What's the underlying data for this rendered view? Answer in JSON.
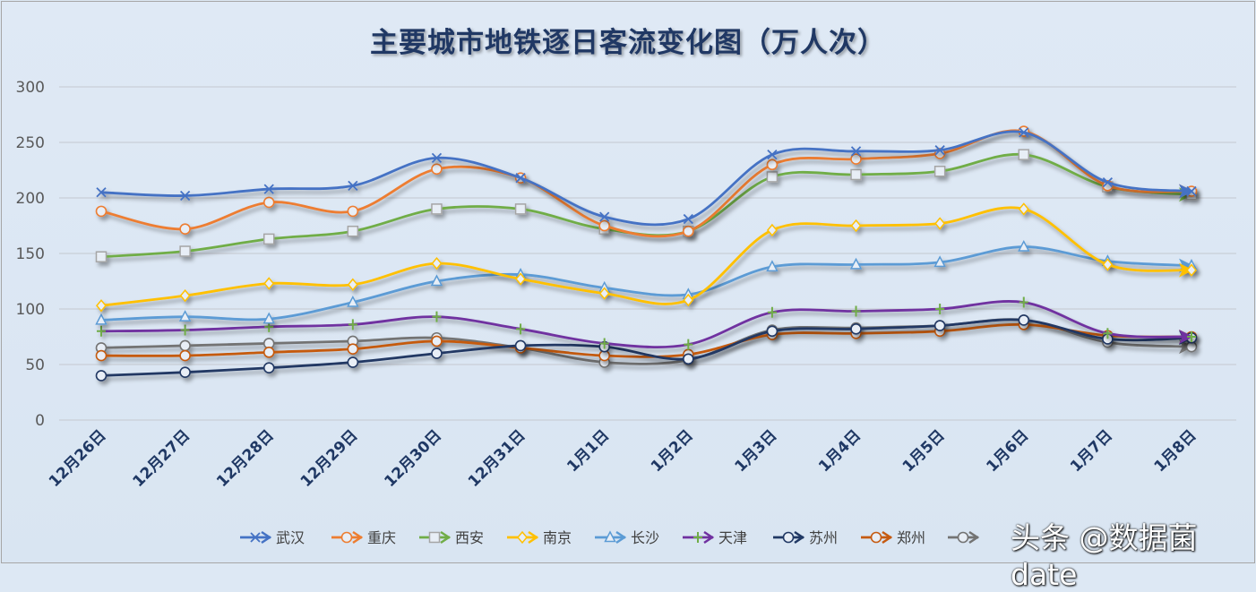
{
  "chart_data": {
    "type": "line",
    "title": "主要城市地铁逐日客流变化图（万人次）",
    "xlabel": "",
    "ylabel": "",
    "ylim": [
      0,
      300
    ],
    "yticks": [
      0,
      50,
      100,
      150,
      200,
      250,
      300
    ],
    "grid": true,
    "smooth": true,
    "legend_position": "bottom",
    "categories": [
      "12月26日",
      "12月27日",
      "12月28日",
      "12月29日",
      "12月30日",
      "12月31日",
      "1月1日",
      "1月2日",
      "1月3日",
      "1月4日",
      "1月5日",
      "1月6日",
      "1月7日",
      "1月8日"
    ],
    "series": [
      {
        "name": "武汉",
        "color": "#4472c4",
        "marker": "x",
        "values": [
          205,
          202,
          208,
          211,
          236,
          218,
          183,
          181,
          239,
          242,
          243,
          259,
          214,
          206
        ]
      },
      {
        "name": "重庆",
        "color": "#ed7d31",
        "marker": "circle",
        "values": [
          188,
          172,
          196,
          188,
          226,
          218,
          175,
          170,
          230,
          235,
          240,
          260,
          211,
          206
        ]
      },
      {
        "name": "西安",
        "color": "#70ad47",
        "marker": "square",
        "values": [
          147,
          152,
          163,
          170,
          190,
          190,
          172,
          170,
          219,
          221,
          224,
          239,
          210,
          203
        ]
      },
      {
        "name": "南京",
        "color": "#ffc000",
        "marker": "diamond",
        "values": [
          103,
          112,
          123,
          122,
          141,
          127,
          114,
          108,
          171,
          175,
          177,
          190,
          140,
          135
        ]
      },
      {
        "name": "长沙",
        "color": "#5b9bd5",
        "marker": "triangle",
        "values": [
          90,
          93,
          91,
          106,
          125,
          131,
          119,
          113,
          138,
          140,
          142,
          156,
          143,
          139
        ]
      },
      {
        "name": "天津",
        "color": "#7030a0",
        "marker": "plus",
        "values": [
          80,
          81,
          84,
          86,
          93,
          82,
          69,
          68,
          97,
          98,
          100,
          106,
          78,
          75
        ]
      },
      {
        "name": "苏州",
        "color": "#203864",
        "marker": "circle",
        "values": [
          40,
          43,
          47,
          52,
          60,
          67,
          66,
          55,
          80,
          82,
          85,
          90,
          73,
          74
        ]
      },
      {
        "name": "郑州",
        "color": "#c55a11",
        "marker": "circle",
        "values": [
          58,
          58,
          61,
          64,
          71,
          65,
          58,
          59,
          77,
          78,
          80,
          86,
          76,
          75
        ]
      },
      {
        "name": "",
        "color": "#737373",
        "marker": "circle",
        "values": [
          65,
          67,
          69,
          71,
          74,
          65,
          52,
          54,
          81,
          83,
          85,
          90,
          70,
          66
        ]
      }
    ]
  },
  "watermark": "头条 @数据菌date"
}
